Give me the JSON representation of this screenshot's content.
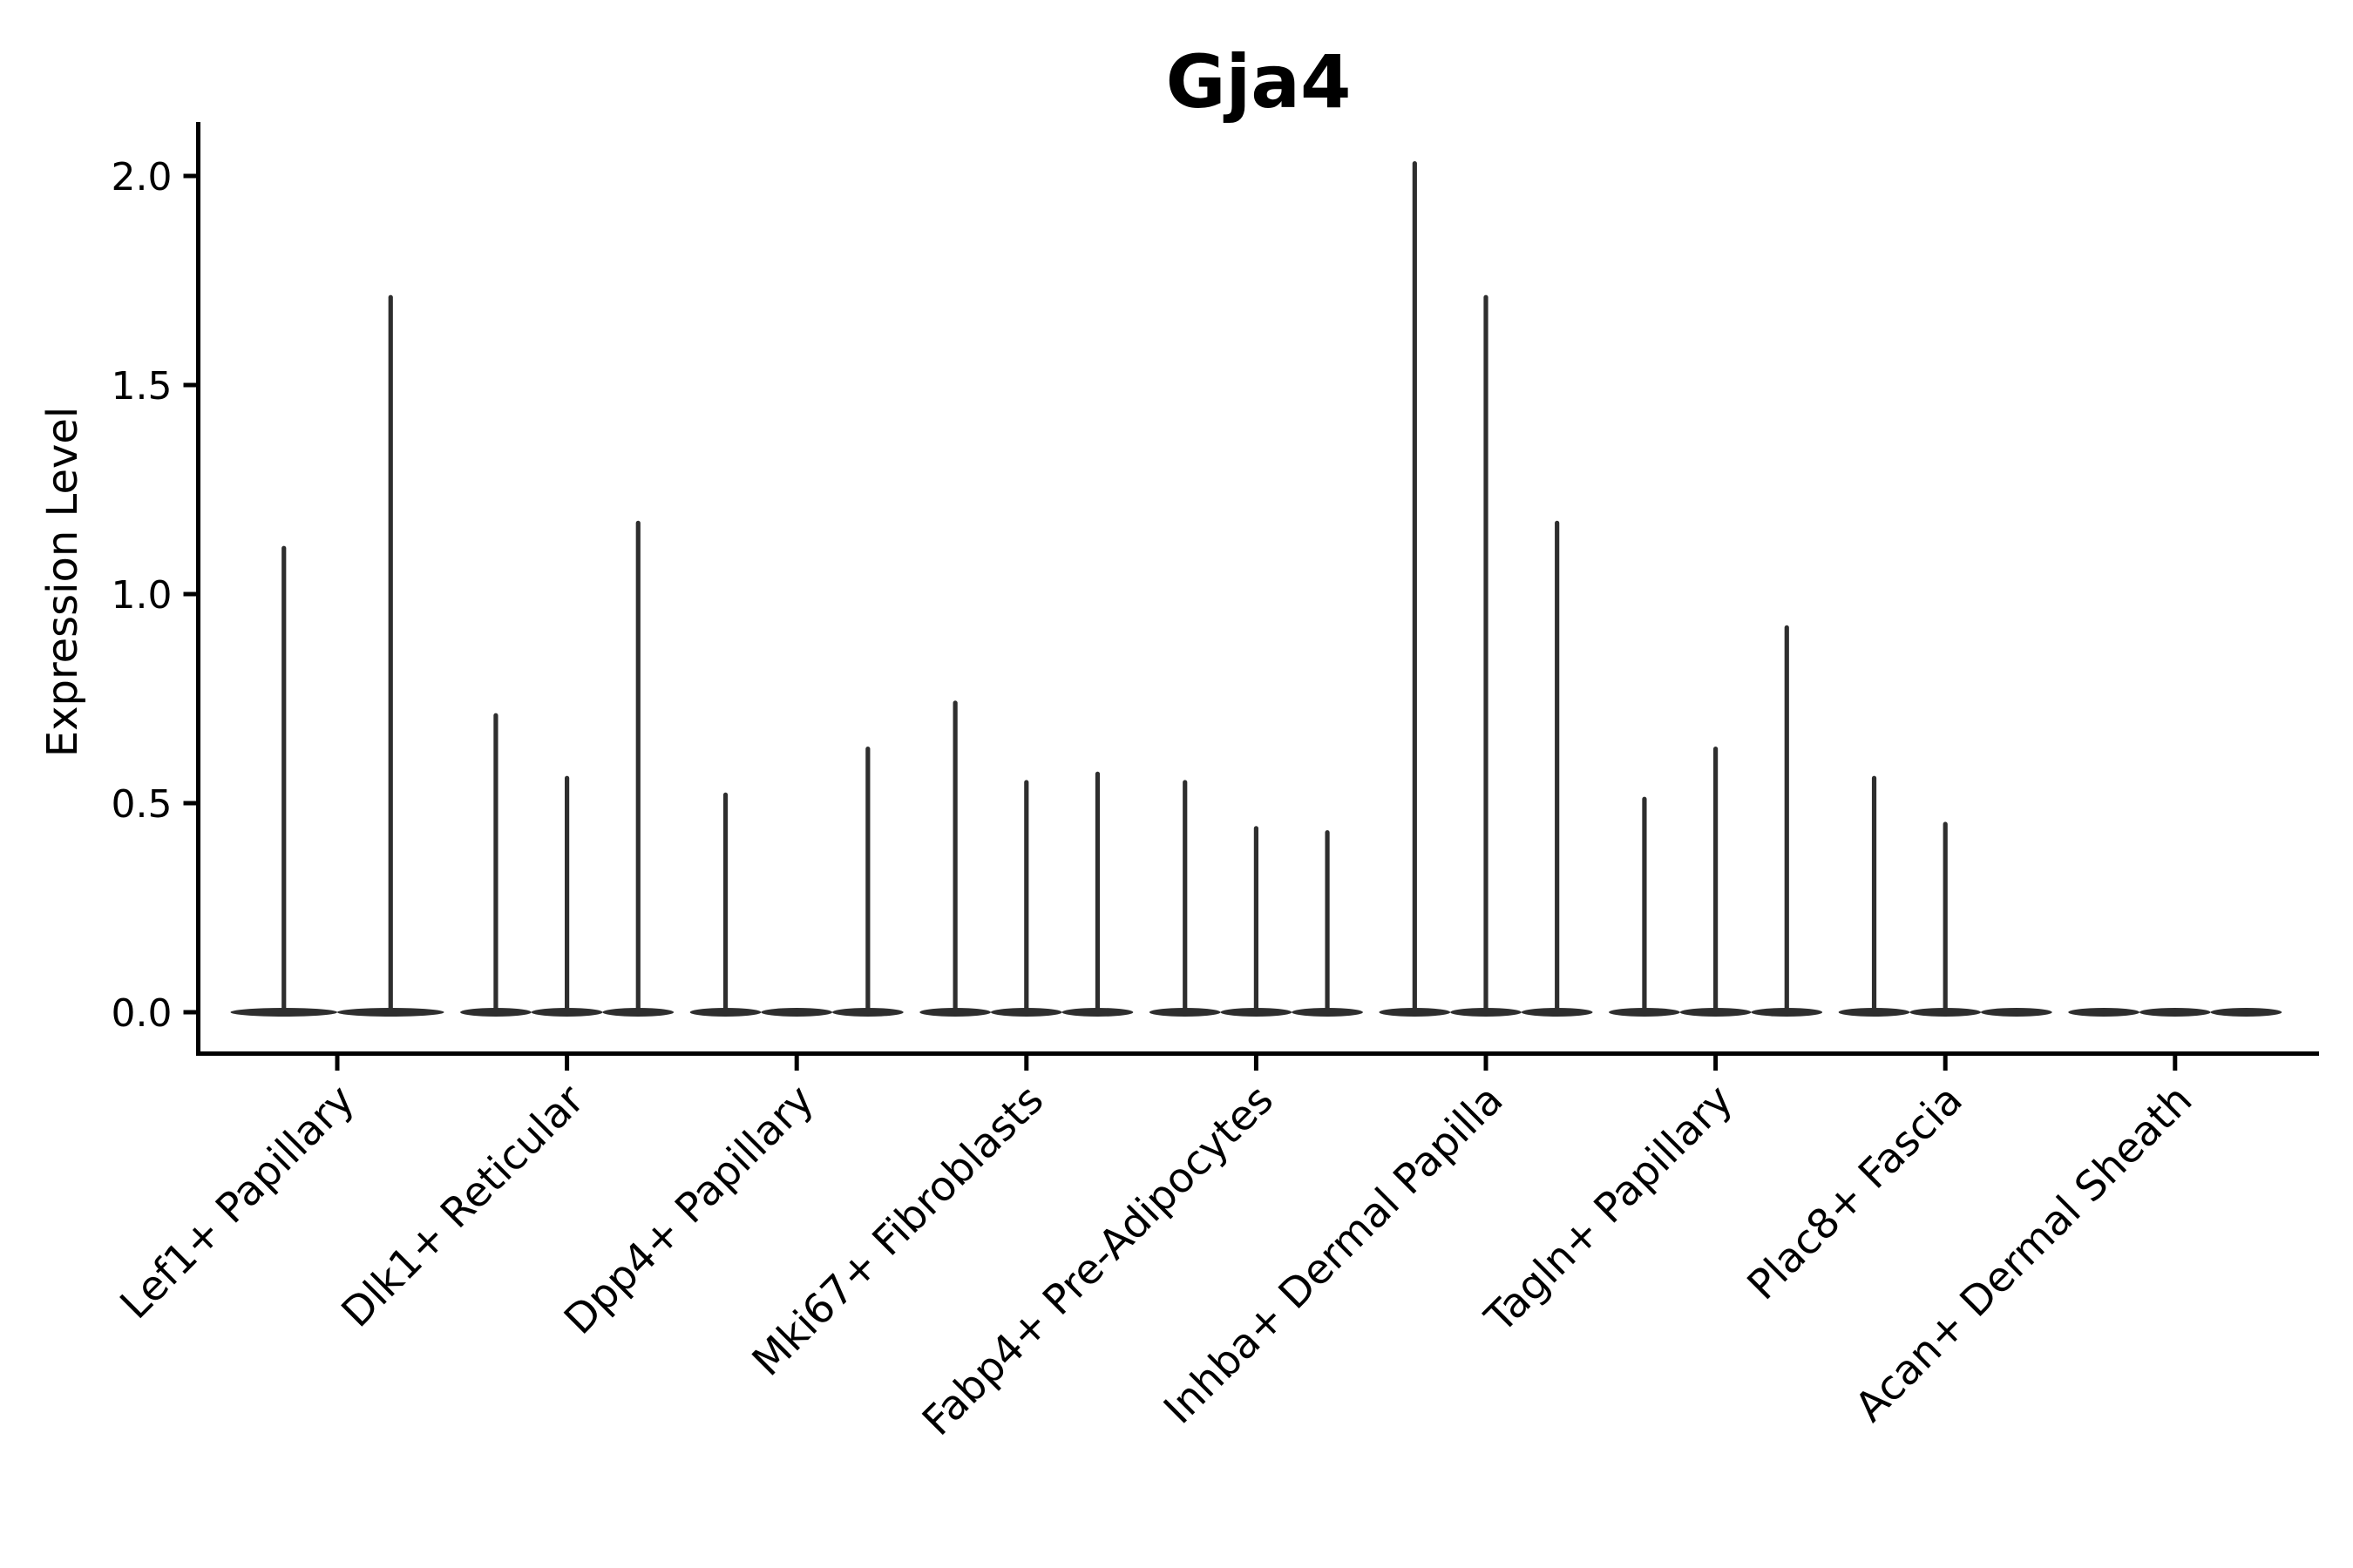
{
  "figure": {
    "background_color": "#ffffff"
  },
  "chart_data": {
    "type": "violin",
    "title": "Gja4",
    "xlabel": "",
    "ylabel": "Expression Level",
    "ylim": [
      0,
      2.13
    ],
    "yticks": [
      0.0,
      0.5,
      1.0,
      1.5,
      2.0
    ],
    "ytick_labels": [
      "0.0",
      "0.5",
      "1.0",
      "1.5",
      "2.0"
    ],
    "grid": false,
    "legend": "none",
    "axis_color": "#000000",
    "violin_color": "#2e2e2e",
    "categories": [
      "Lef1+ Papillary",
      "Dlk1+ Reticular",
      "Dpp4+ Papillary",
      "Mki67+ Fibroblasts",
      "Fabp4+ Pre-Adipocytes",
      "Inhba+ Dermal Papilla",
      "Tagln+ Papillary",
      "Plac8+ Fascia",
      "Acan+ Dermal Sheath"
    ],
    "groups": [
      {
        "category": "Lef1+ Papillary",
        "violin_peak_expression": [
          1.11,
          1.71
        ]
      },
      {
        "category": "Dlk1+ Reticular",
        "violin_peak_expression": [
          0.71,
          0.56,
          1.17
        ]
      },
      {
        "category": "Dpp4+ Papillary",
        "violin_peak_expression": [
          0.52,
          0.0,
          0.63
        ]
      },
      {
        "category": "Mki67+ Fibroblasts",
        "violin_peak_expression": [
          0.74,
          0.55,
          0.57
        ]
      },
      {
        "category": "Fabp4+ Pre-Adipocytes",
        "violin_peak_expression": [
          0.55,
          0.44,
          0.43
        ]
      },
      {
        "category": "Inhba+ Dermal Papilla",
        "violin_peak_expression": [
          2.03,
          1.71,
          1.17
        ]
      },
      {
        "category": "Tagln+ Papillary",
        "violin_peak_expression": [
          0.51,
          0.63,
          0.92
        ]
      },
      {
        "category": "Plac8+ Fascia",
        "violin_peak_expression": [
          0.56,
          0.45,
          0.0
        ]
      },
      {
        "category": "Acan+ Dermal Sheath",
        "violin_peak_expression": [
          0.0,
          0.0,
          0.0
        ]
      }
    ],
    "note": "Violins are collapsed at 0 expression (flat dark bars at baseline) with thin spikes rising to the peak expression value; 0.00 entries are fully flat violins."
  }
}
